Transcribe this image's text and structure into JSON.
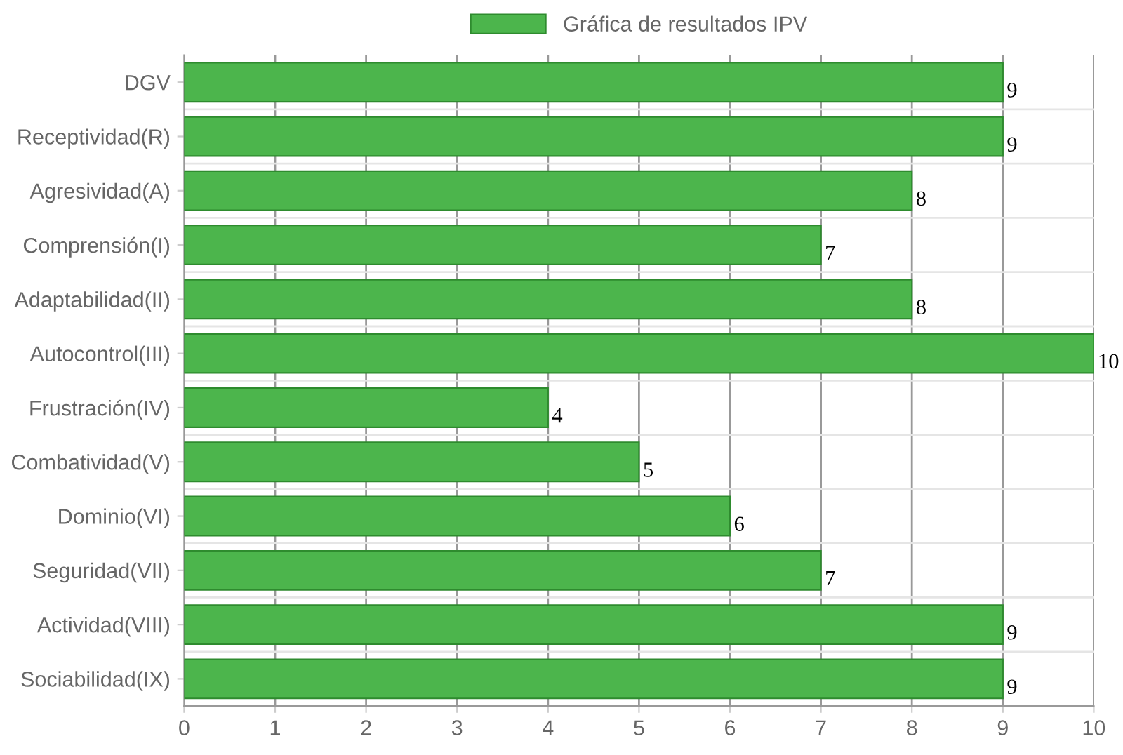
{
  "chart_data": {
    "type": "bar",
    "orientation": "horizontal",
    "categories": [
      "DGV",
      "Receptividad(R)",
      "Agresividad(A)",
      "Comprensión(I)",
      "Adaptabilidad(II)",
      "Autocontrol(III)",
      "Frustración(IV)",
      "Combatividad(V)",
      "Dominio(VI)",
      "Seguridad(VII)",
      "Actividad(VIII)",
      "Sociabilidad(IX)"
    ],
    "series": [
      {
        "name": "Gráfica de resultados IPV",
        "color": "#4cb54c",
        "values": [
          9,
          9,
          8,
          7,
          8,
          10,
          4,
          5,
          6,
          7,
          9,
          9
        ]
      }
    ],
    "xlim": [
      0,
      10
    ],
    "xticks": [
      0,
      1,
      2,
      3,
      4,
      5,
      6,
      7,
      8,
      9,
      10
    ],
    "grid": true,
    "legend": "top",
    "data_labels": true
  }
}
